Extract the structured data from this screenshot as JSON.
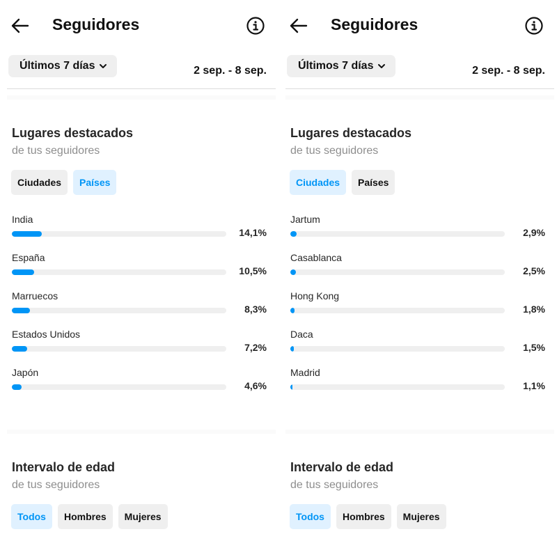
{
  "panels": [
    {
      "header": {
        "title": "Seguidores",
        "back_icon": "arrow-left-icon",
        "info_icon": "info-icon"
      },
      "range": {
        "label": "Últimos 7 días",
        "dates": "2 sep. - 8 sep."
      },
      "places": {
        "title": "Lugares destacados",
        "subtitle": "de tus seguidores",
        "chips": [
          {
            "label": "Ciudades",
            "active": false
          },
          {
            "label": "Países",
            "active": true
          }
        ],
        "rows": [
          {
            "label": "India",
            "pct": "14,1%",
            "value": 14.1
          },
          {
            "label": "España",
            "pct": "10,5%",
            "value": 10.5
          },
          {
            "label": "Marruecos",
            "pct": "8,3%",
            "value": 8.3
          },
          {
            "label": "Estados Unidos",
            "pct": "7,2%",
            "value": 7.2
          },
          {
            "label": "Japón",
            "pct": "4,6%",
            "value": 4.6
          }
        ]
      },
      "age": {
        "title": "Intervalo de edad",
        "subtitle": "de tus seguidores",
        "chips": [
          {
            "label": "Todos",
            "active": true
          },
          {
            "label": "Hombres",
            "active": false
          },
          {
            "label": "Mujeres",
            "active": false
          }
        ]
      }
    },
    {
      "header": {
        "title": "Seguidores",
        "back_icon": "arrow-left-icon",
        "info_icon": "info-icon"
      },
      "range": {
        "label": "Últimos 7 días",
        "dates": "2 sep. - 8 sep."
      },
      "places": {
        "title": "Lugares destacados",
        "subtitle": "de tus seguidores",
        "chips": [
          {
            "label": "Ciudades",
            "active": true
          },
          {
            "label": "Países",
            "active": false
          }
        ],
        "rows": [
          {
            "label": "Jartum",
            "pct": "2,9%",
            "value": 2.9
          },
          {
            "label": "Casablanca",
            "pct": "2,5%",
            "value": 2.5
          },
          {
            "label": "Hong Kong",
            "pct": "1,8%",
            "value": 1.8
          },
          {
            "label": "Daca",
            "pct": "1,5%",
            "value": 1.5
          },
          {
            "label": "Madrid",
            "pct": "1,1%",
            "value": 1.1
          }
        ]
      },
      "age": {
        "title": "Intervalo de edad",
        "subtitle": "de tus seguidores",
        "chips": [
          {
            "label": "Todos",
            "active": true
          },
          {
            "label": "Hombres",
            "active": false
          },
          {
            "label": "Mujeres",
            "active": false
          }
        ]
      }
    }
  ],
  "colors": {
    "accent": "#0095f6",
    "chip_active_bg": "#e0f1ff",
    "chip_bg": "#efefef",
    "track": "#efefef"
  }
}
